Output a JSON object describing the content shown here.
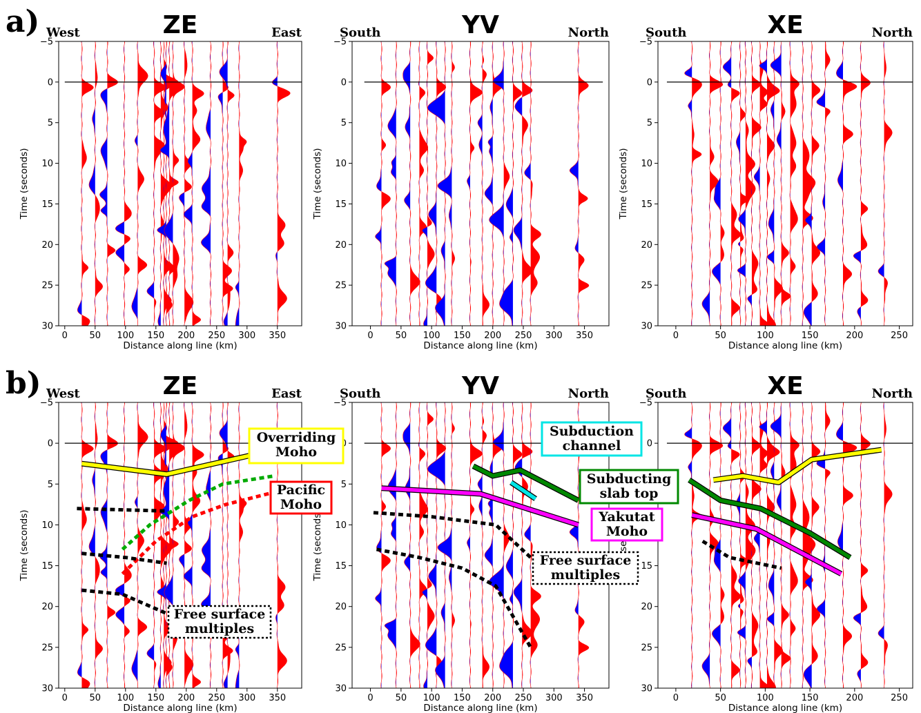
{
  "figure": {
    "row_labels": [
      "a)",
      "b)"
    ],
    "xlabel": "Distance along line (km)",
    "ylabel": "Time (seconds)",
    "colors": {
      "positive": "#ff0000",
      "negative": "#0000ff",
      "trace_line": "#ff0000",
      "zero_line": "#000000"
    }
  },
  "chart_data": [
    {
      "id": "ZE",
      "title": "ZE",
      "left_label": "West",
      "right_label": "East",
      "type": "seismic-wiggle",
      "xlim": [
        -10,
        390
      ],
      "ylim": [
        30,
        -5
      ],
      "xticks": [
        0,
        50,
        100,
        150,
        200,
        250,
        300,
        350
      ],
      "yticks": [
        -5,
        0,
        5,
        10,
        15,
        20,
        25,
        30
      ],
      "stations_km": [
        28,
        50,
        70,
        98,
        120,
        147,
        158,
        163,
        167,
        172,
        178,
        197,
        210,
        240,
        260,
        268,
        287,
        350
      ],
      "interpretation": [
        {
          "label": "Overriding Moho",
          "color": "#ffff00",
          "dashed": false,
          "points": [
            [
              28,
              2.5
            ],
            [
              168,
              3.8
            ],
            [
              305,
              1.5
            ]
          ]
        },
        {
          "label": "",
          "color": "#00aa00",
          "dashed": true,
          "points": [
            [
              95,
              13
            ],
            [
              140,
              10
            ],
            [
              205,
              7
            ],
            [
              260,
              5
            ],
            [
              345,
              4
            ]
          ]
        },
        {
          "label": "Pacific Moho",
          "color": "#ff0000",
          "dashed": true,
          "points": [
            [
              95,
              16
            ],
            [
              150,
              12
            ],
            [
              210,
              9
            ],
            [
              265,
              7.5
            ],
            [
              345,
              6
            ]
          ]
        },
        {
          "label": "",
          "color": "#000000",
          "dashed": true,
          "points": [
            [
              20,
              8
            ],
            [
              165,
              8.3
            ]
          ]
        },
        {
          "label": "",
          "color": "#000000",
          "dashed": true,
          "points": [
            [
              28,
              13.5
            ],
            [
              100,
              14
            ],
            [
              168,
              14.7
            ]
          ]
        },
        {
          "label": "",
          "color": "#000000",
          "dashed": true,
          "points": [
            [
              28,
              18
            ],
            [
              95,
              18.5
            ],
            [
              172,
              21
            ]
          ]
        }
      ],
      "annotations": [
        {
          "text": "Overriding Moho",
          "color": "#ffff00"
        },
        {
          "text": "Pacific Moho",
          "color": "#ff0000"
        },
        {
          "text": "Free surface multiples",
          "color": "#000000",
          "dashed": true
        }
      ]
    },
    {
      "id": "YV",
      "title": "YV",
      "left_label": "South",
      "right_label": "North",
      "type": "seismic-wiggle",
      "xlim": [
        -30,
        390
      ],
      "ylim": [
        30,
        -5
      ],
      "xticks": [
        0,
        50,
        100,
        150,
        200,
        250,
        300,
        350
      ],
      "yticks": [
        -5,
        0,
        5,
        10,
        15,
        20,
        25,
        30
      ],
      "stations_km": [
        18,
        42,
        65,
        80,
        93,
        108,
        122,
        133,
        163,
        183,
        200,
        218,
        233,
        248,
        262,
        340
      ],
      "interpretation": [
        {
          "label": "Subducting slab top",
          "color": "#008800",
          "dashed": false,
          "points": [
            [
              168,
              2.8
            ],
            [
              200,
              4
            ],
            [
              245,
              3.3
            ],
            [
              340,
              7
            ]
          ]
        },
        {
          "label": "Subduction channel",
          "color": "#00e5e5",
          "dashed": false,
          "points": [
            [
              230,
              4.8
            ],
            [
              270,
              6.8
            ]
          ]
        },
        {
          "label": "Yakutat Moho",
          "color": "#ff00ff",
          "dashed": false,
          "points": [
            [
              18,
              5.5
            ],
            [
              180,
              6.2
            ],
            [
              340,
              10
            ]
          ]
        },
        {
          "label": "",
          "color": "#000000",
          "dashed": true,
          "points": [
            [
              5,
              8.5
            ],
            [
              100,
              9
            ],
            [
              205,
              10
            ],
            [
              262,
              14
            ]
          ]
        },
        {
          "label": "",
          "color": "#000000",
          "dashed": true,
          "points": [
            [
              10,
              13
            ],
            [
              80,
              14
            ],
            [
              150,
              15.3
            ],
            [
              205,
              17.5
            ],
            [
              262,
              25
            ]
          ]
        }
      ],
      "annotations": [
        {
          "text": "Subduction channel",
          "color": "#00e5e5"
        },
        {
          "text": "Subducting slab top",
          "color": "#008800"
        },
        {
          "text": "Yakutat Moho",
          "color": "#ff00ff"
        },
        {
          "text": "Free surface multiples",
          "color": "#000000",
          "dashed": true
        }
      ]
    },
    {
      "id": "XE",
      "title": "XE",
      "left_label": "South",
      "right_label": "North",
      "type": "seismic-wiggle",
      "xlim": [
        -20,
        265
      ],
      "ylim": [
        30,
        -5
      ],
      "xticks": [
        0,
        50,
        100,
        150,
        200,
        250
      ],
      "yticks": [
        -5,
        0,
        5,
        10,
        15,
        20,
        25,
        30
      ],
      "stations_km": [
        18,
        38,
        50,
        62,
        72,
        78,
        85,
        94,
        102,
        110,
        118,
        128,
        142,
        152,
        167,
        187,
        207,
        233
      ],
      "interpretation": [
        {
          "label": "",
          "color": "#ffff00",
          "dashed": false,
          "points": [
            [
              42,
              4.5
            ],
            [
              75,
              4
            ],
            [
              115,
              4.8
            ],
            [
              152,
              2
            ],
            [
              230,
              0.8
            ]
          ]
        },
        {
          "label": "",
          "color": "#008800",
          "dashed": false,
          "points": [
            [
              15,
              4.5
            ],
            [
              50,
              7
            ],
            [
              95,
              8
            ],
            [
              150,
              11
            ],
            [
              195,
              14
            ]
          ]
        },
        {
          "label": "",
          "color": "#ff00ff",
          "dashed": false,
          "points": [
            [
              18,
              8.8
            ],
            [
              90,
              10.5
            ],
            [
              185,
              16
            ]
          ]
        },
        {
          "label": "",
          "color": "#000000",
          "dashed": true,
          "points": [
            [
              30,
              12
            ],
            [
              60,
              14
            ],
            [
              118,
              15.3
            ]
          ]
        }
      ],
      "annotations": []
    }
  ]
}
